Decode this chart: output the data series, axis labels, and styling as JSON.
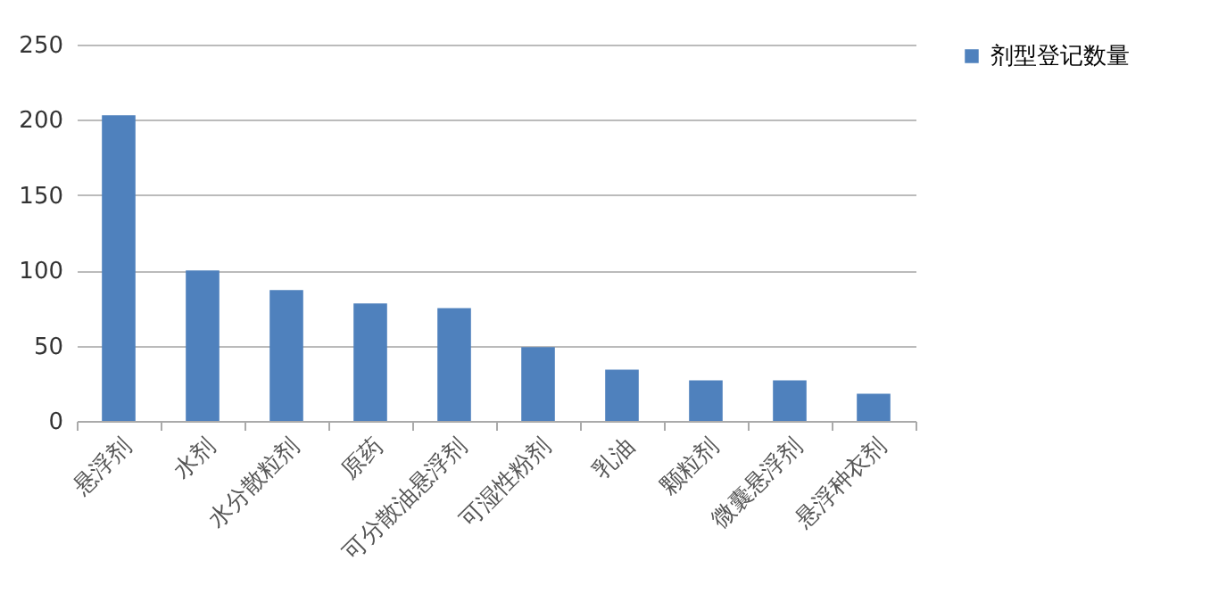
{
  "chart_data": {
    "type": "bar",
    "categories": [
      "悬浮剂",
      "水剂",
      "水分散粒剂",
      "原药",
      "可分散油悬浮剂",
      "可湿性粉剂",
      "乳油",
      "颗粒剂",
      "微囊悬浮剂",
      "悬浮种衣剂"
    ],
    "series": [
      {
        "name": "剂型登记数量",
        "color": "#4f81bd",
        "values": [
          203,
          100,
          87,
          78,
          75,
          49,
          34,
          27,
          27,
          18
        ]
      }
    ],
    "ylim": [
      0,
      250
    ],
    "yticks": [
      0,
      50,
      100,
      150,
      200,
      250
    ],
    "grid": "y",
    "legend": "right"
  }
}
